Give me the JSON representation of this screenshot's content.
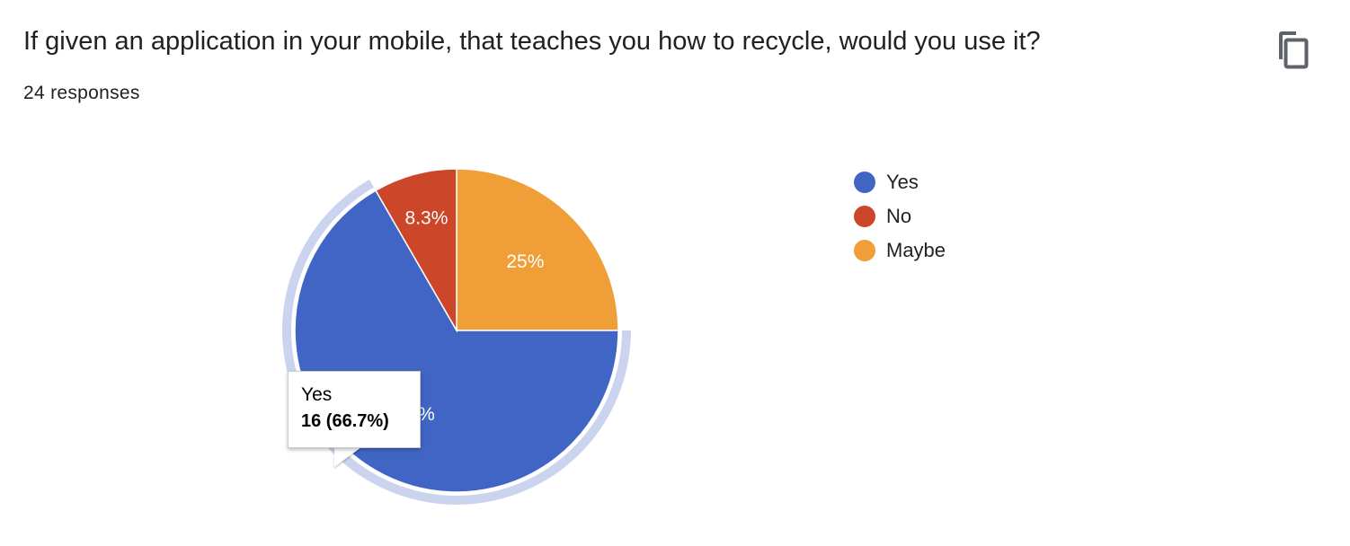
{
  "header": {
    "title": "If given an application in your mobile, that teaches you how to recycle, would you use it?",
    "responses": "24 responses"
  },
  "toolbar": {
    "copy_icon": "copy-icon"
  },
  "chart_data": {
    "type": "pie",
    "categories": [
      "Yes",
      "No",
      "Maybe"
    ],
    "values": [
      16,
      2,
      6
    ],
    "percent_labels": [
      "66.7%",
      "8.3%",
      "25%"
    ],
    "colors": [
      "#4065c4",
      "#cc4729",
      "#f09e38"
    ],
    "legend_position": "right",
    "highlighted": "Yes"
  },
  "tooltip": {
    "name": "Yes",
    "value": "16 (66.7%)"
  }
}
